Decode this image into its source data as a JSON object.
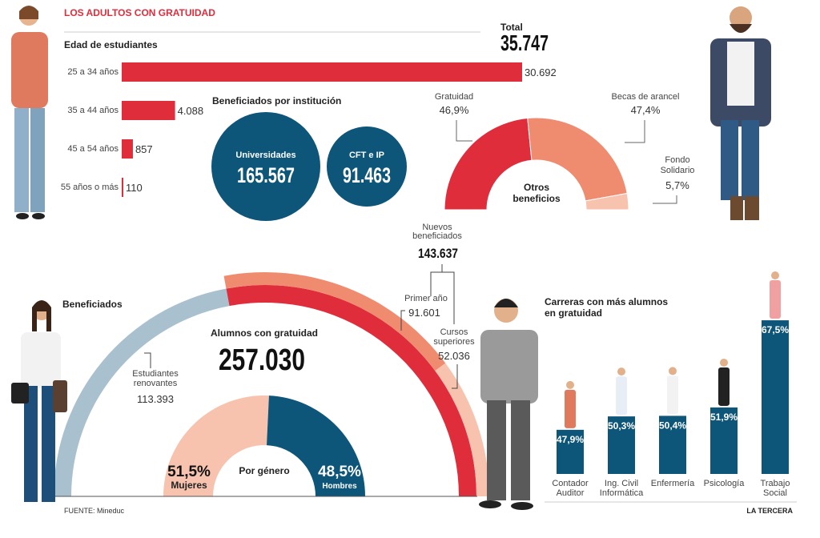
{
  "header": {
    "title": "LOS ADULTOS CON GRATUIDAD",
    "total_label": "Total",
    "total_value": "35.747"
  },
  "colors": {
    "red": "#e02d3c",
    "salmon": "#ef8c70",
    "light_pink": "#f7c3ae",
    "grey_blue": "#a9c0cf",
    "blue": "#0d567a"
  },
  "chart_data": [
    {
      "type": "bar",
      "orientation": "horizontal",
      "title": "Edad de estudiantes",
      "categories": [
        "25 a 34 años",
        "35 a 44 años",
        "45 a 54 años",
        "55 años o más"
      ],
      "values": [
        30692,
        4088,
        857,
        110
      ],
      "value_labels": [
        "30.692",
        "4.088",
        "857",
        "110"
      ]
    },
    {
      "type": "bubble",
      "title": "Beneficiados por institución",
      "categories": [
        "Universidades",
        "CFT e IP"
      ],
      "values": [
        165567,
        91463
      ],
      "value_labels": [
        "165.567",
        "91.463"
      ]
    },
    {
      "type": "pie",
      "variant": "half-donut",
      "center_label": [
        "Otros",
        "beneficios"
      ],
      "categories": [
        "Gratuidad",
        "Becas de arancel",
        "Fondo Solidario"
      ],
      "values": [
        46.9,
        47.4,
        5.7
      ],
      "value_labels": [
        "46,9%",
        "47,4%",
        "5,7%"
      ]
    },
    {
      "type": "pie",
      "variant": "half-donut",
      "title": "Beneficiados",
      "center_title": "Alumnos con gratuidad",
      "center_value": "257.030",
      "segments": [
        {
          "label": [
            "Estudiantes",
            "renovantes"
          ],
          "value": 113393,
          "value_label": "113.393"
        },
        {
          "label": [
            "Nuevos",
            "beneficiados"
          ],
          "value": 143637,
          "value_label": "143.637",
          "parts": [
            {
              "label": [
                "Primer año"
              ],
              "value": 91601,
              "value_label": "91.601"
            },
            {
              "label": [
                "Cursos",
                "superiores"
              ],
              "value": 52036,
              "value_label": "52.036"
            }
          ]
        }
      ]
    },
    {
      "type": "pie",
      "variant": "half-donut",
      "center_label": "Por género",
      "categories": [
        "Mujeres",
        "Hombres"
      ],
      "values": [
        51.5,
        48.5
      ],
      "value_labels": [
        "51,5%",
        "48,5%"
      ]
    },
    {
      "type": "bar",
      "title": "Carreras con más alumnos en gratuidad",
      "categories": [
        [
          "Contador",
          "Auditor"
        ],
        [
          "Ing. Civil",
          "Informática"
        ],
        [
          "Enfermería"
        ],
        [
          "Psicología"
        ],
        [
          "Trabajo",
          "Social"
        ]
      ],
      "values": [
        47.9,
        50.3,
        50.4,
        51.9,
        67.5
      ],
      "value_labels": [
        "47,9%",
        "50,3%",
        "50,4%",
        "51,9%",
        "67,5%"
      ]
    }
  ],
  "footer": {
    "source": "FUENTE: Mineduc",
    "brand": "LA TERCERA"
  }
}
